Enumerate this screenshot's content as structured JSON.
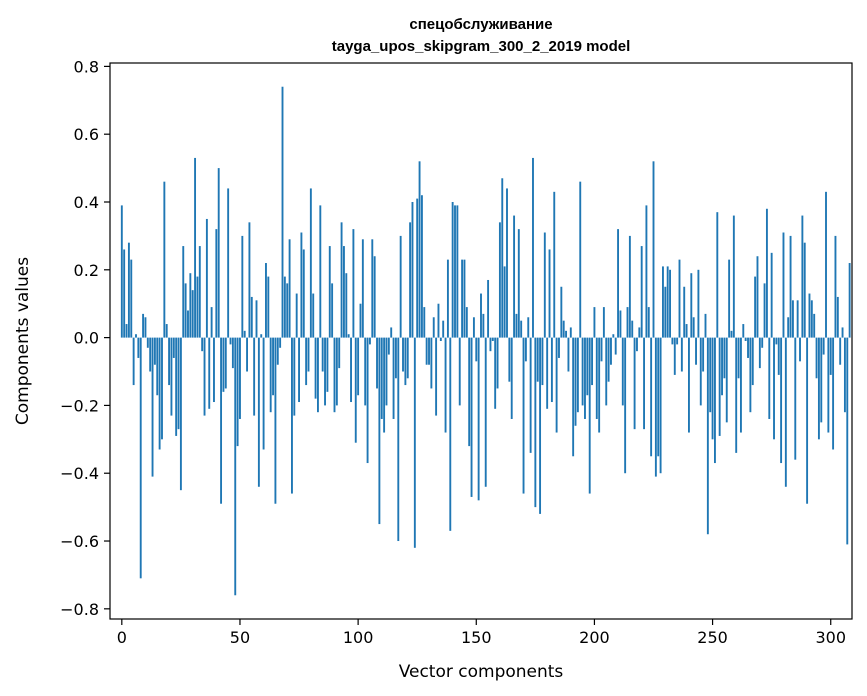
{
  "chart_data": {
    "type": "bar",
    "title": [
      "спецобслуживание",
      "tayga_upos_skipgram_300_2_2019 model"
    ],
    "xlabel": "Vector components",
    "ylabel": "Components values",
    "xlim": [
      -5,
      309
    ],
    "ylim": [
      -0.83,
      0.81
    ],
    "xticks": [
      0,
      50,
      100,
      150,
      200,
      250,
      300
    ],
    "xtick_labels": [
      "0",
      "50",
      "100",
      "150",
      "200",
      "250",
      "300"
    ],
    "yticks": [
      -0.8,
      -0.6,
      -0.4,
      -0.2,
      0.0,
      0.2,
      0.4,
      0.6,
      0.8
    ],
    "ytick_labels": [
      "−0.8",
      "−0.6",
      "−0.4",
      "−0.2",
      "0.0",
      "0.2",
      "0.4",
      "0.6",
      "0.8"
    ],
    "bar_color": "#1f77b4",
    "values": [
      0.39,
      0.26,
      0.04,
      0.28,
      0.23,
      -0.14,
      0.01,
      -0.06,
      -0.71,
      0.07,
      0.06,
      -0.03,
      -0.1,
      -0.41,
      -0.08,
      -0.17,
      -0.33,
      -0.3,
      0.46,
      0.04,
      -0.14,
      -0.23,
      -0.06,
      -0.29,
      -0.27,
      -0.45,
      0.27,
      0.16,
      0.08,
      0.19,
      0.14,
      0.53,
      0.18,
      0.27,
      -0.04,
      -0.23,
      0.35,
      -0.21,
      0.09,
      -0.19,
      0.32,
      0.5,
      -0.49,
      -0.16,
      -0.15,
      0.44,
      -0.02,
      -0.09,
      -0.76,
      -0.32,
      -0.24,
      0.3,
      0.02,
      -0.1,
      0.34,
      0.12,
      -0.23,
      0.11,
      -0.44,
      0.01,
      -0.33,
      0.22,
      0.18,
      -0.22,
      -0.17,
      -0.49,
      -0.08,
      -0.03,
      0.74,
      0.18,
      0.16,
      0.29,
      -0.46,
      -0.23,
      0.13,
      -0.19,
      0.31,
      0.26,
      -0.14,
      -0.1,
      0.44,
      0.13,
      -0.18,
      -0.22,
      0.39,
      -0.1,
      -0.2,
      -0.16,
      0.27,
      0.16,
      -0.22,
      -0.2,
      -0.09,
      0.34,
      0.27,
      0.19,
      0.01,
      -0.19,
      0.32,
      -0.31,
      -0.17,
      0.1,
      0.29,
      -0.2,
      -0.37,
      -0.02,
      0.29,
      0.24,
      -0.15,
      -0.55,
      -0.24,
      -0.28,
      -0.2,
      -0.05,
      0.03,
      -0.24,
      -0.12,
      -0.6,
      0.3,
      -0.1,
      -0.14,
      -0.12,
      0.34,
      0.4,
      -0.62,
      0.41,
      0.52,
      0.42,
      0.09,
      -0.08,
      -0.08,
      -0.15,
      0.06,
      -0.23,
      0.1,
      -0.01,
      0.05,
      -0.28,
      0.23,
      -0.57,
      0.4,
      0.39,
      0.39,
      -0.2,
      0.23,
      0.23,
      0.09,
      -0.32,
      -0.47,
      0.06,
      -0.07,
      -0.48,
      0.13,
      0.07,
      -0.44,
      0.17,
      -0.04,
      -0.01,
      -0.21,
      -0.15,
      0.34,
      0.47,
      0.21,
      0.44,
      -0.13,
      -0.24,
      0.36,
      0.07,
      0.32,
      0.05,
      -0.46,
      -0.07,
      0.06,
      -0.34,
      0.53,
      -0.5,
      -0.13,
      -0.52,
      -0.14,
      0.31,
      -0.21,
      0.26,
      -0.19,
      0.43,
      -0.28,
      -0.06,
      0.15,
      0.05,
      0.02,
      -0.1,
      0.03,
      -0.35,
      -0.26,
      -0.22,
      0.46,
      -0.2,
      -0.24,
      -0.17,
      -0.46,
      -0.14,
      0.09,
      -0.24,
      -0.28,
      -0.07,
      0.09,
      -0.2,
      -0.13,
      -0.08,
      0.01,
      -0.05,
      0.32,
      0.08,
      -0.2,
      -0.4,
      0.09,
      0.3,
      0.05,
      -0.27,
      -0.04,
      0.03,
      0.27,
      -0.27,
      0.39,
      0.09,
      -0.35,
      0.52,
      -0.41,
      -0.35,
      -0.4,
      0.21,
      0.15,
      0.21,
      0.2,
      -0.02,
      -0.11,
      -0.02,
      0.23,
      -0.1,
      0.15,
      0.04,
      -0.28,
      0.19,
      0.06,
      -0.08,
      0.2,
      -0.2,
      -0.1,
      0.07,
      -0.58,
      -0.22,
      -0.3,
      -0.37,
      0.37,
      -0.29,
      -0.17,
      -0.12,
      -0.25,
      0.23,
      0.02,
      0.36,
      -0.34,
      -0.12,
      -0.28,
      0.04,
      -0.01,
      -0.06,
      -0.22,
      -0.14,
      0.18,
      0.24,
      -0.09,
      -0.03,
      0.16,
      0.38,
      -0.24,
      0.25,
      -0.3,
      -0.02,
      -0.11,
      -0.37,
      0.31,
      -0.44,
      0.06,
      0.3,
      0.11,
      -0.36,
      0.11,
      -0.07,
      0.36,
      0.28,
      -0.49,
      0.13,
      0.11,
      0.07,
      -0.12,
      -0.3,
      -0.25,
      -0.05,
      0.43,
      -0.28,
      -0.11,
      -0.33,
      0.3,
      0.12,
      -0.08,
      0.03,
      -0.22,
      -0.61,
      0.22
    ]
  }
}
